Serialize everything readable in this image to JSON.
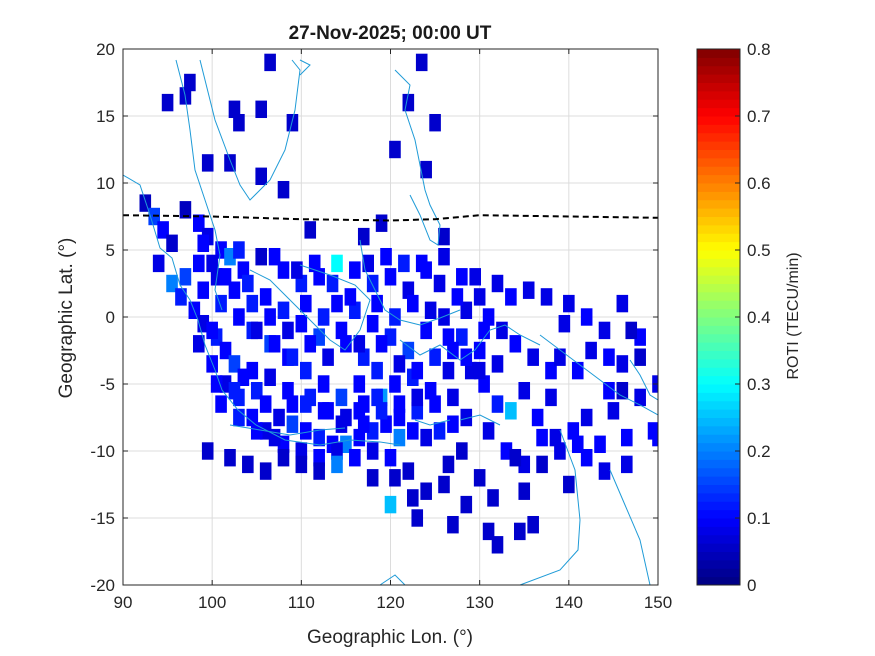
{
  "chart_data": {
    "type": "heatmap",
    "title": "27-Nov-2025; 00:00 UT",
    "xlabel": "Geographic Lon. (°)",
    "ylabel": "Geographic Lat. (°)",
    "xlim": [
      90,
      150
    ],
    "ylim": [
      -20,
      20
    ],
    "xticks": [
      "90",
      "100",
      "110",
      "120",
      "130",
      "140",
      "150"
    ],
    "yticks": [
      "20",
      "15",
      "10",
      "5",
      "0",
      "-5",
      "-10",
      "-15",
      "-20"
    ],
    "grid": true,
    "colorbar": {
      "label": "ROTI (TECU/min)",
      "range": [
        0,
        0.8
      ],
      "ticks": [
        "0.8",
        "0.7",
        "0.6",
        "0.5",
        "0.4",
        "0.3",
        "0.2",
        "0.1",
        "0"
      ],
      "colormap": "jet"
    },
    "magnetic_equator": {
      "style": "dashed",
      "color": "#000000",
      "points": [
        [
          90,
          7.6
        ],
        [
          100,
          7.5
        ],
        [
          110,
          7.3
        ],
        [
          120,
          7.2
        ],
        [
          125,
          7.3
        ],
        [
          130,
          7.6
        ],
        [
          140,
          7.5
        ],
        [
          150,
          7.4
        ]
      ]
    },
    "cell_size_deg": [
      1.3,
      1.3
    ],
    "roti_cells": [
      [
        92.5,
        8.5,
        0.05
      ],
      [
        93.5,
        7.5,
        0.15
      ],
      [
        94.5,
        6.5,
        0.1
      ],
      [
        95.5,
        5.5,
        0.06
      ],
      [
        97.0,
        8.0,
        0.05
      ],
      [
        98.5,
        7.0,
        0.1
      ],
      [
        99.5,
        6.0,
        0.08
      ],
      [
        101.0,
        5.0,
        0.1
      ],
      [
        102.0,
        4.5,
        0.2
      ],
      [
        103.5,
        3.5,
        0.1
      ],
      [
        94.0,
        4.0,
        0.08
      ],
      [
        95.5,
        2.5,
        0.2
      ],
      [
        96.5,
        1.5,
        0.12
      ],
      [
        98.0,
        0.5,
        0.1
      ],
      [
        99.0,
        -0.5,
        0.08
      ],
      [
        100.5,
        -1.5,
        0.12
      ],
      [
        101.5,
        -2.5,
        0.1
      ],
      [
        102.5,
        -3.5,
        0.15
      ],
      [
        103.5,
        -4.5,
        0.1
      ],
      [
        105.0,
        -5.5,
        0.12
      ],
      [
        106.0,
        -6.5,
        0.1
      ],
      [
        107.5,
        -7.5,
        0.08
      ],
      [
        109.0,
        -8.0,
        0.15
      ],
      [
        110.5,
        -8.5,
        0.1
      ],
      [
        112.0,
        -9.0,
        0.12
      ],
      [
        113.5,
        -9.5,
        0.1
      ],
      [
        115.0,
        -9.5,
        0.2
      ],
      [
        116.5,
        -9.0,
        0.1
      ],
      [
        118.0,
        -8.5,
        0.12
      ],
      [
        119.5,
        -8.0,
        0.1
      ],
      [
        121.0,
        -9.0,
        0.2
      ],
      [
        122.5,
        -8.5,
        0.1
      ],
      [
        124.0,
        -9.0,
        0.08
      ],
      [
        125.5,
        -8.5,
        0.12
      ],
      [
        127.0,
        -8.0,
        0.1
      ],
      [
        128.5,
        -7.5,
        0.08
      ],
      [
        104.0,
        2.5,
        0.12
      ],
      [
        106.0,
        1.5,
        0.1
      ],
      [
        108.0,
        0.5,
        0.12
      ],
      [
        110.0,
        -0.5,
        0.1
      ],
      [
        112.0,
        -1.5,
        0.15
      ],
      [
        114.0,
        1.0,
        0.1
      ],
      [
        116.0,
        0.5,
        0.12
      ],
      [
        118.0,
        -0.5,
        0.1
      ],
      [
        120.0,
        -1.5,
        0.12
      ],
      [
        122.0,
        -2.5,
        0.15
      ],
      [
        124.0,
        -1.0,
        0.1
      ],
      [
        126.0,
        0.0,
        0.08
      ],
      [
        128.0,
        -1.5,
        0.12
      ],
      [
        130.0,
        -2.5,
        0.1
      ],
      [
        132.0,
        -3.5,
        0.08
      ],
      [
        134.0,
        -2.0,
        0.1
      ],
      [
        136.0,
        -3.0,
        0.08
      ],
      [
        138.0,
        -4.0,
        0.1
      ],
      [
        108.0,
        3.5,
        0.1
      ],
      [
        110.0,
        2.5,
        0.12
      ],
      [
        112.0,
        3.0,
        0.1
      ],
      [
        114.0,
        4.0,
        0.3
      ],
      [
        116.0,
        3.5,
        0.1
      ],
      [
        118.0,
        2.5,
        0.12
      ],
      [
        120.0,
        3.0,
        0.1
      ],
      [
        122.0,
        2.0,
        0.08
      ],
      [
        124.0,
        3.5,
        0.1
      ],
      [
        126.0,
        4.5,
        0.08
      ],
      [
        128.0,
        3.0,
        0.1
      ],
      [
        130.0,
        1.5,
        0.08
      ],
      [
        104.5,
        -1.0,
        0.12
      ],
      [
        106.5,
        -2.0,
        0.15
      ],
      [
        108.5,
        -3.0,
        0.1
      ],
      [
        110.5,
        -4.0,
        0.12
      ],
      [
        112.5,
        -5.0,
        0.1
      ],
      [
        114.5,
        -6.0,
        0.15
      ],
      [
        116.5,
        -5.0,
        0.1
      ],
      [
        118.5,
        -4.0,
        0.12
      ],
      [
        120.5,
        -5.0,
        0.1
      ],
      [
        122.5,
        -4.5,
        0.12
      ],
      [
        124.5,
        -5.5,
        0.1
      ],
      [
        126.5,
        -4.0,
        0.08
      ],
      [
        117.0,
        -6.5,
        0.1
      ],
      [
        119.0,
        -6.0,
        0.22
      ],
      [
        121.0,
        -6.5,
        0.1
      ],
      [
        123.0,
        -7.0,
        0.12
      ],
      [
        125.0,
        -6.5,
        0.1
      ],
      [
        127.0,
        -6.0,
        0.08
      ],
      [
        100.0,
        -3.5,
        0.1
      ],
      [
        101.5,
        -5.0,
        0.08
      ],
      [
        103.0,
        -6.0,
        0.12
      ],
      [
        104.5,
        -7.5,
        0.1
      ],
      [
        106.0,
        -8.5,
        0.08
      ],
      [
        108.0,
        -9.5,
        0.1
      ],
      [
        110.0,
        -10.0,
        0.08
      ],
      [
        112.0,
        -10.5,
        0.1
      ],
      [
        114.0,
        -10.0,
        0.08
      ],
      [
        116.0,
        -10.5,
        0.1
      ],
      [
        118.0,
        -10.0,
        0.08
      ],
      [
        120.0,
        -10.5,
        0.1
      ],
      [
        130.5,
        -5.0,
        0.1
      ],
      [
        132.0,
        -6.5,
        0.12
      ],
      [
        133.5,
        -7.0,
        0.25
      ],
      [
        135.0,
        -5.5,
        0.08
      ],
      [
        136.5,
        -7.5,
        0.1
      ],
      [
        138.0,
        -6.0,
        0.08
      ],
      [
        131.0,
        -8.5,
        0.08
      ],
      [
        133.0,
        -10.0,
        0.1
      ],
      [
        135.0,
        -11.0,
        0.08
      ],
      [
        137.0,
        -9.0,
        0.1
      ],
      [
        139.0,
        -10.0,
        0.08
      ],
      [
        140.5,
        -8.5,
        0.1
      ],
      [
        142.0,
        -7.5,
        0.08
      ],
      [
        143.5,
        -9.5,
        0.1
      ],
      [
        145.0,
        -7.0,
        0.08
      ],
      [
        146.5,
        -9.0,
        0.1
      ],
      [
        148.0,
        -6.0,
        0.08
      ],
      [
        149.5,
        -8.5,
        0.1
      ],
      [
        139.0,
        -3.0,
        0.08
      ],
      [
        141.0,
        -4.0,
        0.1
      ],
      [
        142.5,
        -2.5,
        0.08
      ],
      [
        144.5,
        -3.0,
        0.1
      ],
      [
        146.0,
        -3.5,
        0.08
      ],
      [
        148.0,
        -1.5,
        0.1
      ],
      [
        139.5,
        -0.5,
        0.08
      ],
      [
        142.0,
        0.0,
        0.1
      ],
      [
        144.0,
        -1.0,
        0.08
      ],
      [
        146.0,
        1.0,
        0.08
      ],
      [
        150.0,
        -5.0,
        0.08
      ],
      [
        144.5,
        -5.5,
        0.1
      ],
      [
        140.0,
        1.0,
        0.08
      ],
      [
        137.5,
        1.5,
        0.08
      ],
      [
        135.5,
        2.0,
        0.08
      ],
      [
        133.5,
        1.5,
        0.1
      ],
      [
        132.0,
        2.5,
        0.08
      ],
      [
        131.0,
        0.0,
        0.1
      ],
      [
        138.5,
        -9.0,
        0.08
      ],
      [
        141.0,
        -9.5,
        0.1
      ],
      [
        144.0,
        -11.5,
        0.08
      ],
      [
        150.0,
        -9.0,
        0.1
      ],
      [
        146.5,
        -11.0,
        0.08
      ],
      [
        142.0,
        -10.5,
        0.1
      ],
      [
        95.0,
        16.0,
        0.06
      ],
      [
        97.5,
        17.5,
        0.06
      ],
      [
        97.0,
        16.5,
        0.06
      ],
      [
        99.5,
        11.5,
        0.06
      ],
      [
        102.5,
        15.5,
        0.06
      ],
      [
        103.0,
        14.5,
        0.06
      ],
      [
        105.5,
        15.5,
        0.06
      ],
      [
        106.5,
        19.0,
        0.06
      ],
      [
        109.0,
        14.5,
        0.06
      ],
      [
        102.0,
        11.5,
        0.06
      ],
      [
        105.5,
        10.5,
        0.06
      ],
      [
        108.0,
        9.5,
        0.06
      ],
      [
        111.0,
        6.5,
        0.06
      ],
      [
        122.0,
        16.0,
        0.06
      ],
      [
        125.0,
        14.5,
        0.06
      ],
      [
        123.5,
        19.0,
        0.06
      ],
      [
        120.5,
        12.5,
        0.06
      ],
      [
        124.0,
        11.0,
        0.06
      ],
      [
        126.0,
        6.0,
        0.06
      ],
      [
        119.0,
        7.0,
        0.06
      ],
      [
        117.0,
        6.0,
        0.06
      ],
      [
        105.5,
        4.5,
        0.06
      ],
      [
        108.0,
        -10.5,
        0.06
      ],
      [
        104.0,
        -11.0,
        0.06
      ],
      [
        102.0,
        -10.5,
        0.06
      ],
      [
        99.5,
        -10.0,
        0.06
      ],
      [
        120.5,
        -12.0,
        0.06
      ],
      [
        122.5,
        -13.5,
        0.06
      ],
      [
        124.0,
        -13.0,
        0.06
      ],
      [
        126.0,
        -12.5,
        0.06
      ],
      [
        120.0,
        -14.0,
        0.25
      ],
      [
        123.0,
        -15.0,
        0.06
      ],
      [
        127.0,
        -15.5,
        0.06
      ],
      [
        128.5,
        -14.0,
        0.06
      ],
      [
        130.0,
        -12.0,
        0.06
      ],
      [
        131.5,
        -13.5,
        0.06
      ],
      [
        131.0,
        -16.0,
        0.06
      ],
      [
        132.0,
        -17.0,
        0.06
      ],
      [
        134.5,
        -16.0,
        0.06
      ],
      [
        136.0,
        -15.5,
        0.06
      ],
      [
        137.0,
        -11.0,
        0.06
      ],
      [
        140.0,
        -12.5,
        0.06
      ],
      [
        135.0,
        -13.0,
        0.06
      ],
      [
        134.0,
        -10.5,
        0.06
      ],
      [
        128.0,
        -10.0,
        0.06
      ],
      [
        126.5,
        -11.0,
        0.06
      ],
      [
        122.0,
        -11.5,
        0.06
      ],
      [
        118.0,
        -12.0,
        0.06
      ],
      [
        114.0,
        -11.0,
        0.2
      ],
      [
        112.0,
        -11.5,
        0.06
      ],
      [
        110.0,
        -11.0,
        0.06
      ],
      [
        106.0,
        -11.5,
        0.06
      ],
      [
        147.0,
        -1.0,
        0.06
      ],
      [
        146.0,
        -5.5,
        0.06
      ],
      [
        148.0,
        -3.0,
        0.06
      ],
      [
        97.0,
        3.0,
        0.15
      ],
      [
        99.0,
        2.0,
        0.1
      ],
      [
        101.0,
        1.0,
        0.12
      ],
      [
        103.0,
        0.0,
        0.1
      ],
      [
        105.0,
        -1.0,
        0.08
      ],
      [
        107.0,
        -2.0,
        0.1
      ],
      [
        109.0,
        -3.0,
        0.12
      ],
      [
        111.0,
        -2.0,
        0.1
      ],
      [
        113.0,
        -3.0,
        0.08
      ],
      [
        115.0,
        -2.0,
        0.1
      ],
      [
        117.0,
        -3.0,
        0.12
      ],
      [
        119.0,
        -2.0,
        0.1
      ],
      [
        121.0,
        -3.5,
        0.08
      ],
      [
        123.0,
        -4.0,
        0.1
      ],
      [
        125.0,
        -3.0,
        0.12
      ],
      [
        127.0,
        -2.5,
        0.1
      ],
      [
        129.0,
        -4.0,
        0.08
      ],
      [
        98.5,
        4.0,
        0.1
      ],
      [
        100.5,
        3.0,
        0.08
      ],
      [
        102.5,
        2.0,
        0.1
      ],
      [
        104.5,
        1.0,
        0.12
      ],
      [
        106.5,
        0.0,
        0.1
      ],
      [
        108.5,
        -1.0,
        0.08
      ],
      [
        110.5,
        1.0,
        0.1
      ],
      [
        112.5,
        0.0,
        0.12
      ],
      [
        114.5,
        -1.0,
        0.1
      ],
      [
        116.5,
        -2.0,
        0.08
      ],
      [
        118.5,
        1.0,
        0.1
      ],
      [
        120.5,
        0.0,
        0.12
      ],
      [
        122.5,
        1.0,
        0.1
      ],
      [
        124.5,
        0.5,
        0.08
      ],
      [
        126.5,
        -1.5,
        0.1
      ],
      [
        128.5,
        0.5,
        0.08
      ],
      [
        130.5,
        -1.0,
        0.1
      ],
      [
        132.5,
        -1.0,
        0.08
      ],
      [
        101.0,
        -6.5,
        0.1
      ],
      [
        103.0,
        -7.5,
        0.12
      ],
      [
        105.0,
        -8.5,
        0.1
      ],
      [
        107.0,
        -9.0,
        0.08
      ],
      [
        109.0,
        -6.5,
        0.1
      ],
      [
        111.0,
        -6.0,
        0.12
      ],
      [
        113.0,
        -7.0,
        0.1
      ],
      [
        115.0,
        -7.5,
        0.08
      ],
      [
        117.0,
        -8.0,
        0.1
      ],
      [
        119.0,
        -7.0,
        0.12
      ],
      [
        121.0,
        -7.5,
        0.1
      ],
      [
        123.0,
        -6.0,
        0.08
      ],
      [
        100.0,
        -1.0,
        0.1
      ],
      [
        98.5,
        -2.0,
        0.08
      ],
      [
        100.5,
        -5.0,
        0.1
      ],
      [
        102.5,
        -5.5,
        0.12
      ],
      [
        104.5,
        -4.0,
        0.1
      ],
      [
        106.5,
        -4.5,
        0.08
      ],
      [
        108.5,
        -5.5,
        0.1
      ],
      [
        110.5,
        -6.5,
        0.12
      ],
      [
        112.5,
        -7.0,
        0.1
      ],
      [
        114.5,
        -8.0,
        0.08
      ],
      [
        116.5,
        -7.0,
        0.1
      ],
      [
        118.5,
        -6.0,
        0.12
      ],
      [
        99.0,
        5.5,
        0.1
      ],
      [
        100.0,
        4.0,
        0.08
      ],
      [
        101.5,
        3.0,
        0.1
      ],
      [
        103.0,
        5.0,
        0.12
      ],
      [
        107.0,
        4.5,
        0.1
      ],
      [
        109.5,
        3.5,
        0.08
      ],
      [
        111.5,
        4.0,
        0.1
      ],
      [
        113.5,
        2.5,
        0.12
      ],
      [
        115.5,
        1.5,
        0.1
      ],
      [
        117.5,
        4.0,
        0.08
      ],
      [
        119.5,
        4.5,
        0.1
      ],
      [
        121.5,
        4.0,
        0.12
      ],
      [
        123.5,
        4.0,
        0.1
      ],
      [
        125.5,
        2.5,
        0.08
      ],
      [
        127.5,
        1.5,
        0.1
      ],
      [
        129.5,
        3.0,
        0.08
      ],
      [
        128.5,
        -3.0,
        0.1
      ],
      [
        130.0,
        -4.0,
        0.08
      ]
    ]
  }
}
